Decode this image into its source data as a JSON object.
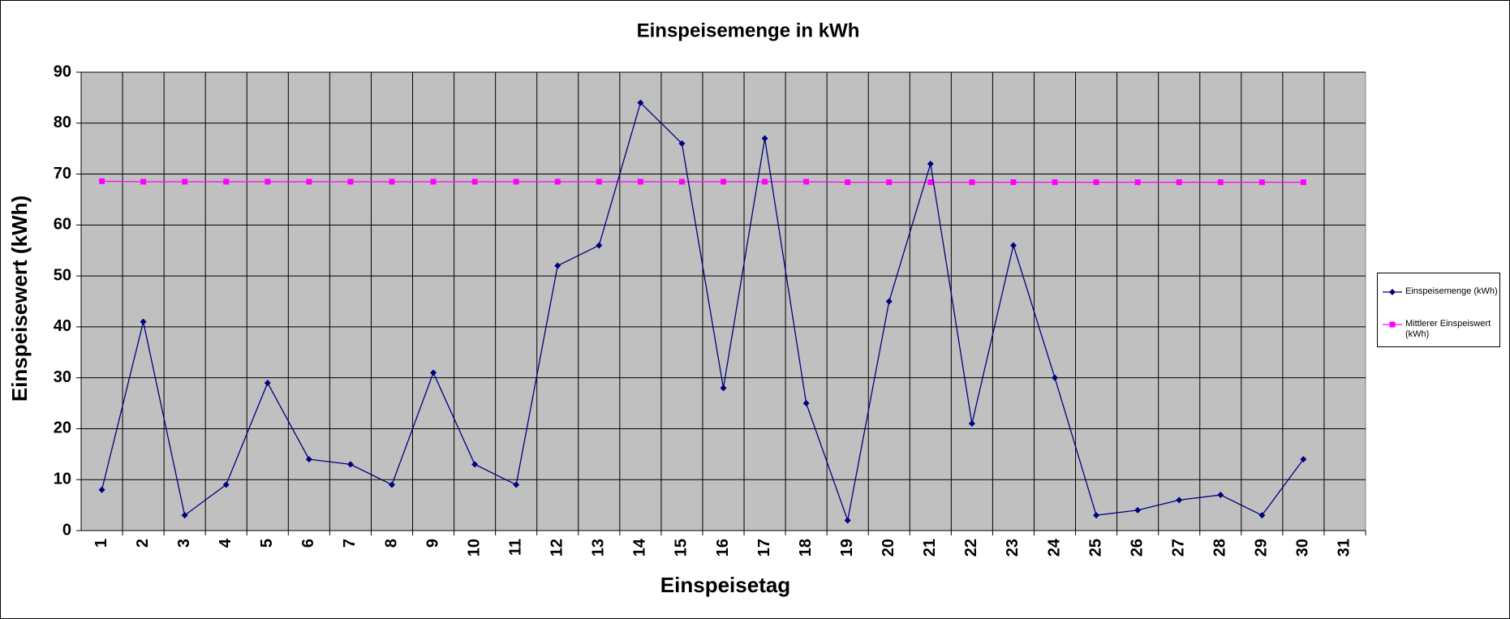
{
  "chart_data": {
    "type": "line",
    "title": "Einspeisemenge in kWh",
    "x_label": "Einspeisetag",
    "y_label": "Einspeisewert  (kWh)",
    "categories": [
      "1",
      "2",
      "3",
      "4",
      "5",
      "6",
      "7",
      "8",
      "9",
      "10",
      "11",
      "12",
      "13",
      "14",
      "15",
      "16",
      "17",
      "18",
      "19",
      "20",
      "21",
      "22",
      "23",
      "24",
      "25",
      "26",
      "27",
      "28",
      "29",
      "30",
      "31"
    ],
    "series": [
      {
        "name": "Einspeisemenge (kWh)",
        "color": "#000080",
        "marker": "diamond",
        "values": [
          8,
          41,
          3,
          9,
          29,
          14,
          13,
          9,
          31,
          13,
          9,
          52,
          56,
          84,
          76,
          28,
          77,
          25,
          2,
          45,
          72,
          21,
          56,
          30,
          3,
          4,
          6,
          7,
          3,
          14,
          null
        ]
      },
      {
        "name": "Mittlerer Einspeiswert (kWh)",
        "color": "#ff00ff",
        "marker": "square",
        "values": [
          68.6,
          68.5,
          68.5,
          68.5,
          68.5,
          68.5,
          68.5,
          68.5,
          68.5,
          68.5,
          68.5,
          68.5,
          68.5,
          68.5,
          68.5,
          68.5,
          68.5,
          68.5,
          68.4,
          68.4,
          68.4,
          68.4,
          68.4,
          68.4,
          68.4,
          68.4,
          68.4,
          68.4,
          68.4,
          68.4,
          null
        ]
      }
    ],
    "ylim": [
      0,
      90
    ],
    "yticks": [
      0,
      10,
      20,
      30,
      40,
      50,
      60,
      70,
      80,
      90
    ],
    "grid": true,
    "plot_background": "#c0c0c0",
    "legend": "right"
  }
}
